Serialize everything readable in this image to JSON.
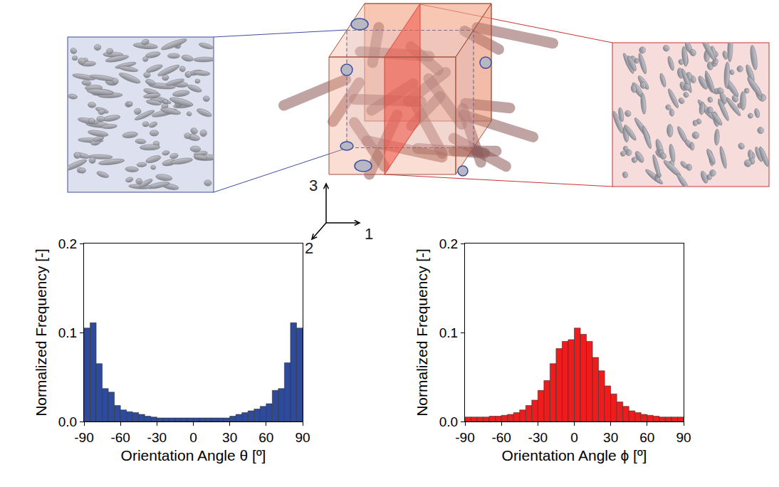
{
  "chart_data": [
    {
      "type": "histogram",
      "bins": [
        -90,
        -85,
        -80,
        -75,
        -70,
        -65,
        -60,
        -55,
        -50,
        -45,
        -40,
        -35,
        -30,
        -25,
        -20,
        -15,
        -10,
        -5,
        0,
        5,
        10,
        15,
        20,
        25,
        30,
        35,
        40,
        45,
        50,
        55,
        60,
        65,
        70,
        75,
        80,
        85,
        90
      ],
      "values": [
        0.105,
        0.111,
        0.065,
        0.037,
        0.033,
        0.018,
        0.013,
        0.011,
        0.01,
        0.008,
        0.006,
        0.005,
        0.004,
        0.004,
        0.004,
        0.004,
        0.004,
        0.004,
        0.004,
        0.004,
        0.004,
        0.004,
        0.004,
        0.004,
        0.006,
        0.008,
        0.01,
        0.012,
        0.014,
        0.017,
        0.02,
        0.035,
        0.037,
        0.066,
        0.111,
        0.105
      ],
      "color": "#2e4a9a",
      "xlabel": "Orientation Angle θ [º]",
      "ylabel": "Normalized Frequency [-]",
      "xlim": [
        -90,
        90
      ],
      "xticks": [
        -90,
        -60,
        -30,
        0,
        30,
        60,
        90
      ],
      "ylim": [
        0,
        0.2
      ],
      "yticks": [
        {
          "value": 0,
          "label": "0.0"
        },
        0.1,
        0.2
      ]
    },
    {
      "type": "histogram",
      "bins": [
        -90,
        -85,
        -80,
        -75,
        -70,
        -65,
        -60,
        -55,
        -50,
        -45,
        -40,
        -35,
        -30,
        -25,
        -20,
        -15,
        -10,
        -5,
        0,
        5,
        10,
        15,
        20,
        25,
        30,
        35,
        40,
        45,
        50,
        55,
        60,
        65,
        70,
        75,
        80,
        85,
        90
      ],
      "values": [
        0.005,
        0.005,
        0.005,
        0.005,
        0.006,
        0.006,
        0.007,
        0.008,
        0.01,
        0.013,
        0.018,
        0.024,
        0.035,
        0.046,
        0.065,
        0.082,
        0.09,
        0.092,
        0.105,
        0.098,
        0.09,
        0.072,
        0.057,
        0.04,
        0.031,
        0.022,
        0.017,
        0.012,
        0.01,
        0.008,
        0.007,
        0.006,
        0.005,
        0.005,
        0.005,
        0.005
      ],
      "color": "#ee1c1c",
      "xlabel": "Orientation Angle ϕ [º]",
      "ylabel": "Normalized Frequency [-]",
      "xlim": [
        -90,
        90
      ],
      "xticks": [
        -90,
        -60,
        -30,
        0,
        30,
        60,
        90
      ],
      "ylim": [
        0,
        0.2
      ],
      "yticks": [
        {
          "value": 0,
          "label": "0.0"
        },
        0.1,
        0.2
      ]
    }
  ],
  "diagram": {
    "axes": [
      "1",
      "2",
      "3"
    ]
  }
}
